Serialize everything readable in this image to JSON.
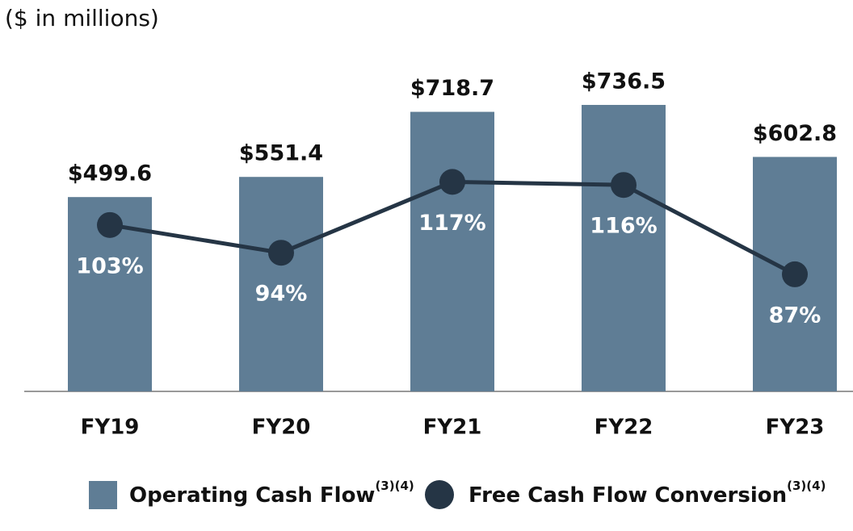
{
  "chart_data": {
    "type": "bar-line",
    "subtitle": "($ in millions)",
    "categories": [
      "FY19",
      "FY20",
      "FY21",
      "FY22",
      "FY23"
    ],
    "series": [
      {
        "name": "Operating Cash Flow",
        "footnote": "(3)(4)",
        "type": "bar",
        "color": "#5f7d95",
        "values": [
          499.6,
          551.4,
          718.7,
          736.5,
          602.8
        ],
        "value_labels": [
          "$499.6",
          "$551.4",
          "$718.7",
          "$736.5",
          "$602.8"
        ]
      },
      {
        "name": "Free Cash Flow Conversion",
        "footnote": "(3)(4)",
        "type": "line",
        "axis": "y2",
        "color": "#253545",
        "values": [
          103,
          94,
          117,
          116,
          87
        ],
        "value_labels": [
          "103%",
          "94%",
          "117%",
          "116%",
          "87%"
        ]
      }
    ],
    "ylim": [
      0,
      800
    ],
    "y2lim": [
      49,
      150
    ]
  }
}
